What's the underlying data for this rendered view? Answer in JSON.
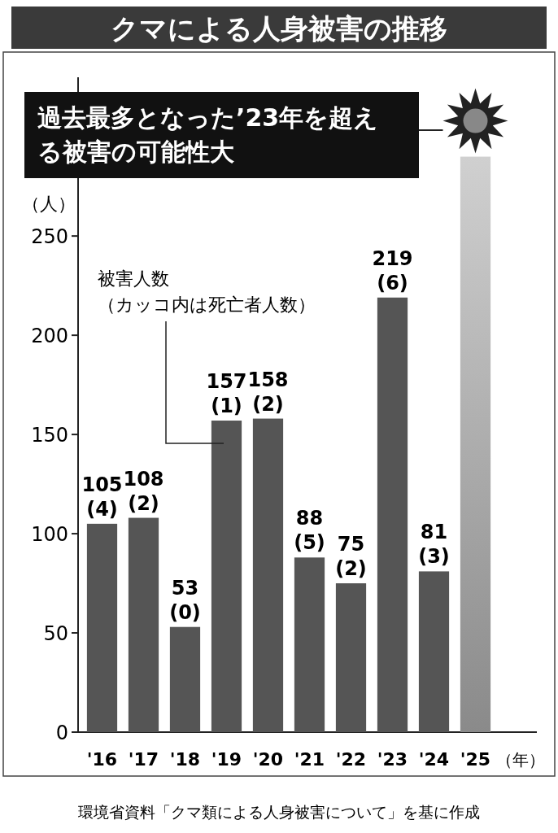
{
  "chart_data": {
    "type": "bar",
    "title": "クマによる人身被害の推移",
    "ylabel": "（人）",
    "xlabel": "（年）",
    "categories": [
      "'16",
      "'17",
      "'18",
      "'19",
      "'20",
      "'21",
      "'22",
      "'23",
      "'24",
      "'25"
    ],
    "values": [
      105,
      108,
      53,
      157,
      158,
      88,
      75,
      219,
      81,
      290
    ],
    "colors": [
      "#555555",
      "#555555",
      "#555555",
      "#555555",
      "#555555",
      "#555555",
      "#555555",
      "#555555",
      "#555555",
      "#8a8a8a"
    ],
    "value_labels": [
      "105\n(4)",
      "108\n(2)",
      "53\n(0)",
      "157\n(1)",
      "158\n(2)",
      "88\n(5)",
      "75\n(2)",
      "219\n(6)",
      "81\n(3)",
      null
    ],
    "ylim": [
      0,
      330
    ],
    "yticks": [
      0,
      50,
      100,
      150,
      200,
      250
    ],
    "annotations": [
      "過去最多となった’23年を超える被害の可能性大",
      "被害人数（カッコ内は死亡者人数）",
      "環境省資料「クマ類による人身被害について」を基に作成"
    ]
  }
}
